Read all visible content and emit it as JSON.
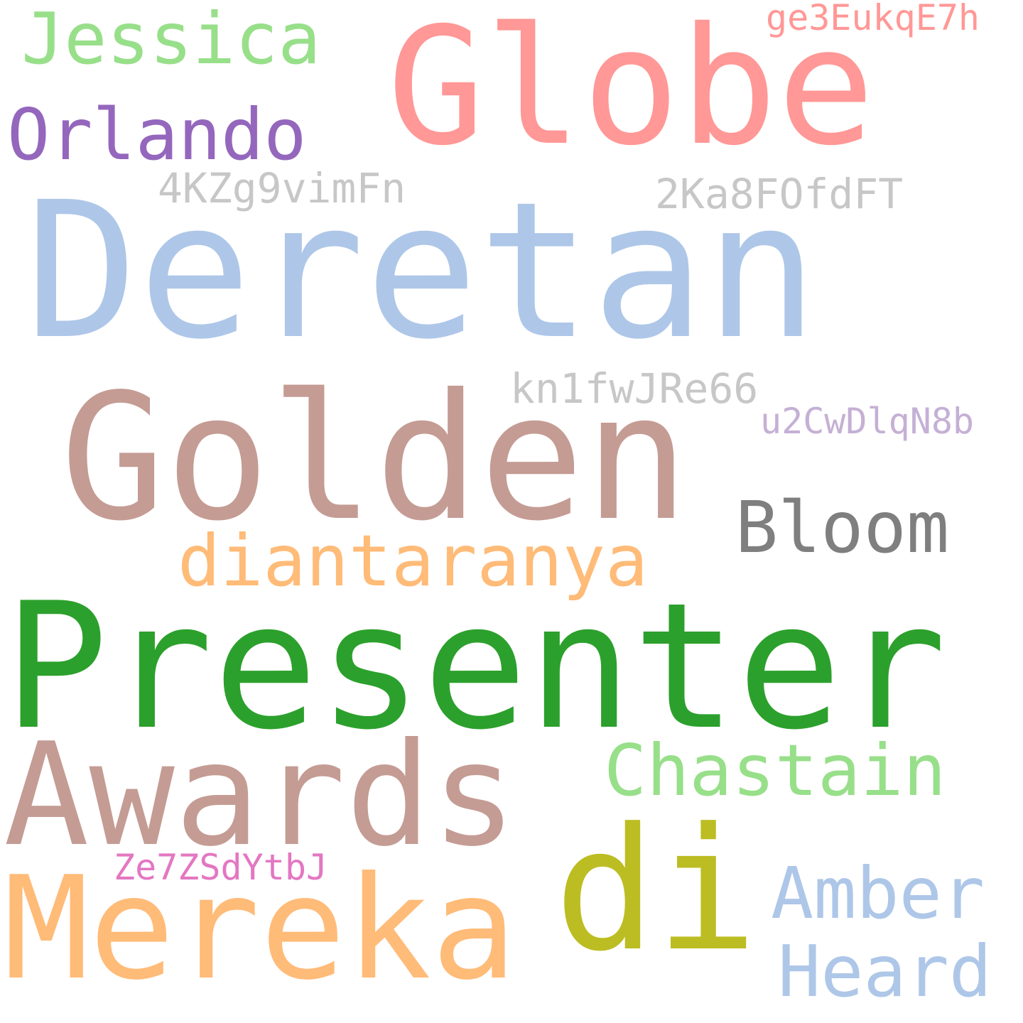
{
  "words": [
    {
      "id": "presenter",
      "text": "Presenter",
      "color": "#2ca02c"
    },
    {
      "id": "deretan",
      "text": "Deretan",
      "color": "#aec7e8"
    },
    {
      "id": "golden",
      "text": "Golden",
      "color": "#c49c94"
    },
    {
      "id": "globe",
      "text": "Globe",
      "color": "#ff9896"
    },
    {
      "id": "awards",
      "text": "Awards",
      "color": "#c49c94"
    },
    {
      "id": "mereka",
      "text": "Mereka",
      "color": "#ffbb78"
    },
    {
      "id": "di",
      "text": "di",
      "color": "#bcbd22"
    },
    {
      "id": "chastain",
      "text": "Chastain",
      "color": "#98df8a"
    },
    {
      "id": "amber",
      "text": "Amber",
      "color": "#aec7e8"
    },
    {
      "id": "heard",
      "text": "Heard",
      "color": "#aec7e8"
    },
    {
      "id": "bloom",
      "text": "Bloom",
      "color": "#7f7f7f"
    },
    {
      "id": "diantaranya",
      "text": "diantaranya",
      "color": "#ffbb78"
    },
    {
      "id": "orlando",
      "text": "Orlando",
      "color": "#9467bd"
    },
    {
      "id": "jessica",
      "text": "Jessica",
      "color": "#98df8a"
    },
    {
      "id": "ge3",
      "text": "ge3EukqE7h",
      "color": "#ff9896"
    },
    {
      "id": "4kz",
      "text": "4KZg9vimFn",
      "color": "#c7c7c7"
    },
    {
      "id": "2ka",
      "text": "2Ka8FOfdFT",
      "color": "#c7c7c7"
    },
    {
      "id": "kn1",
      "text": "kn1fwJRe66",
      "color": "#c7c7c7"
    },
    {
      "id": "u2c",
      "text": "u2CwDlqN8b",
      "color": "#c5b0d5"
    },
    {
      "id": "ze7",
      "text": "Ze7ZSdYtbJ",
      "color": "#e377c2"
    }
  ]
}
